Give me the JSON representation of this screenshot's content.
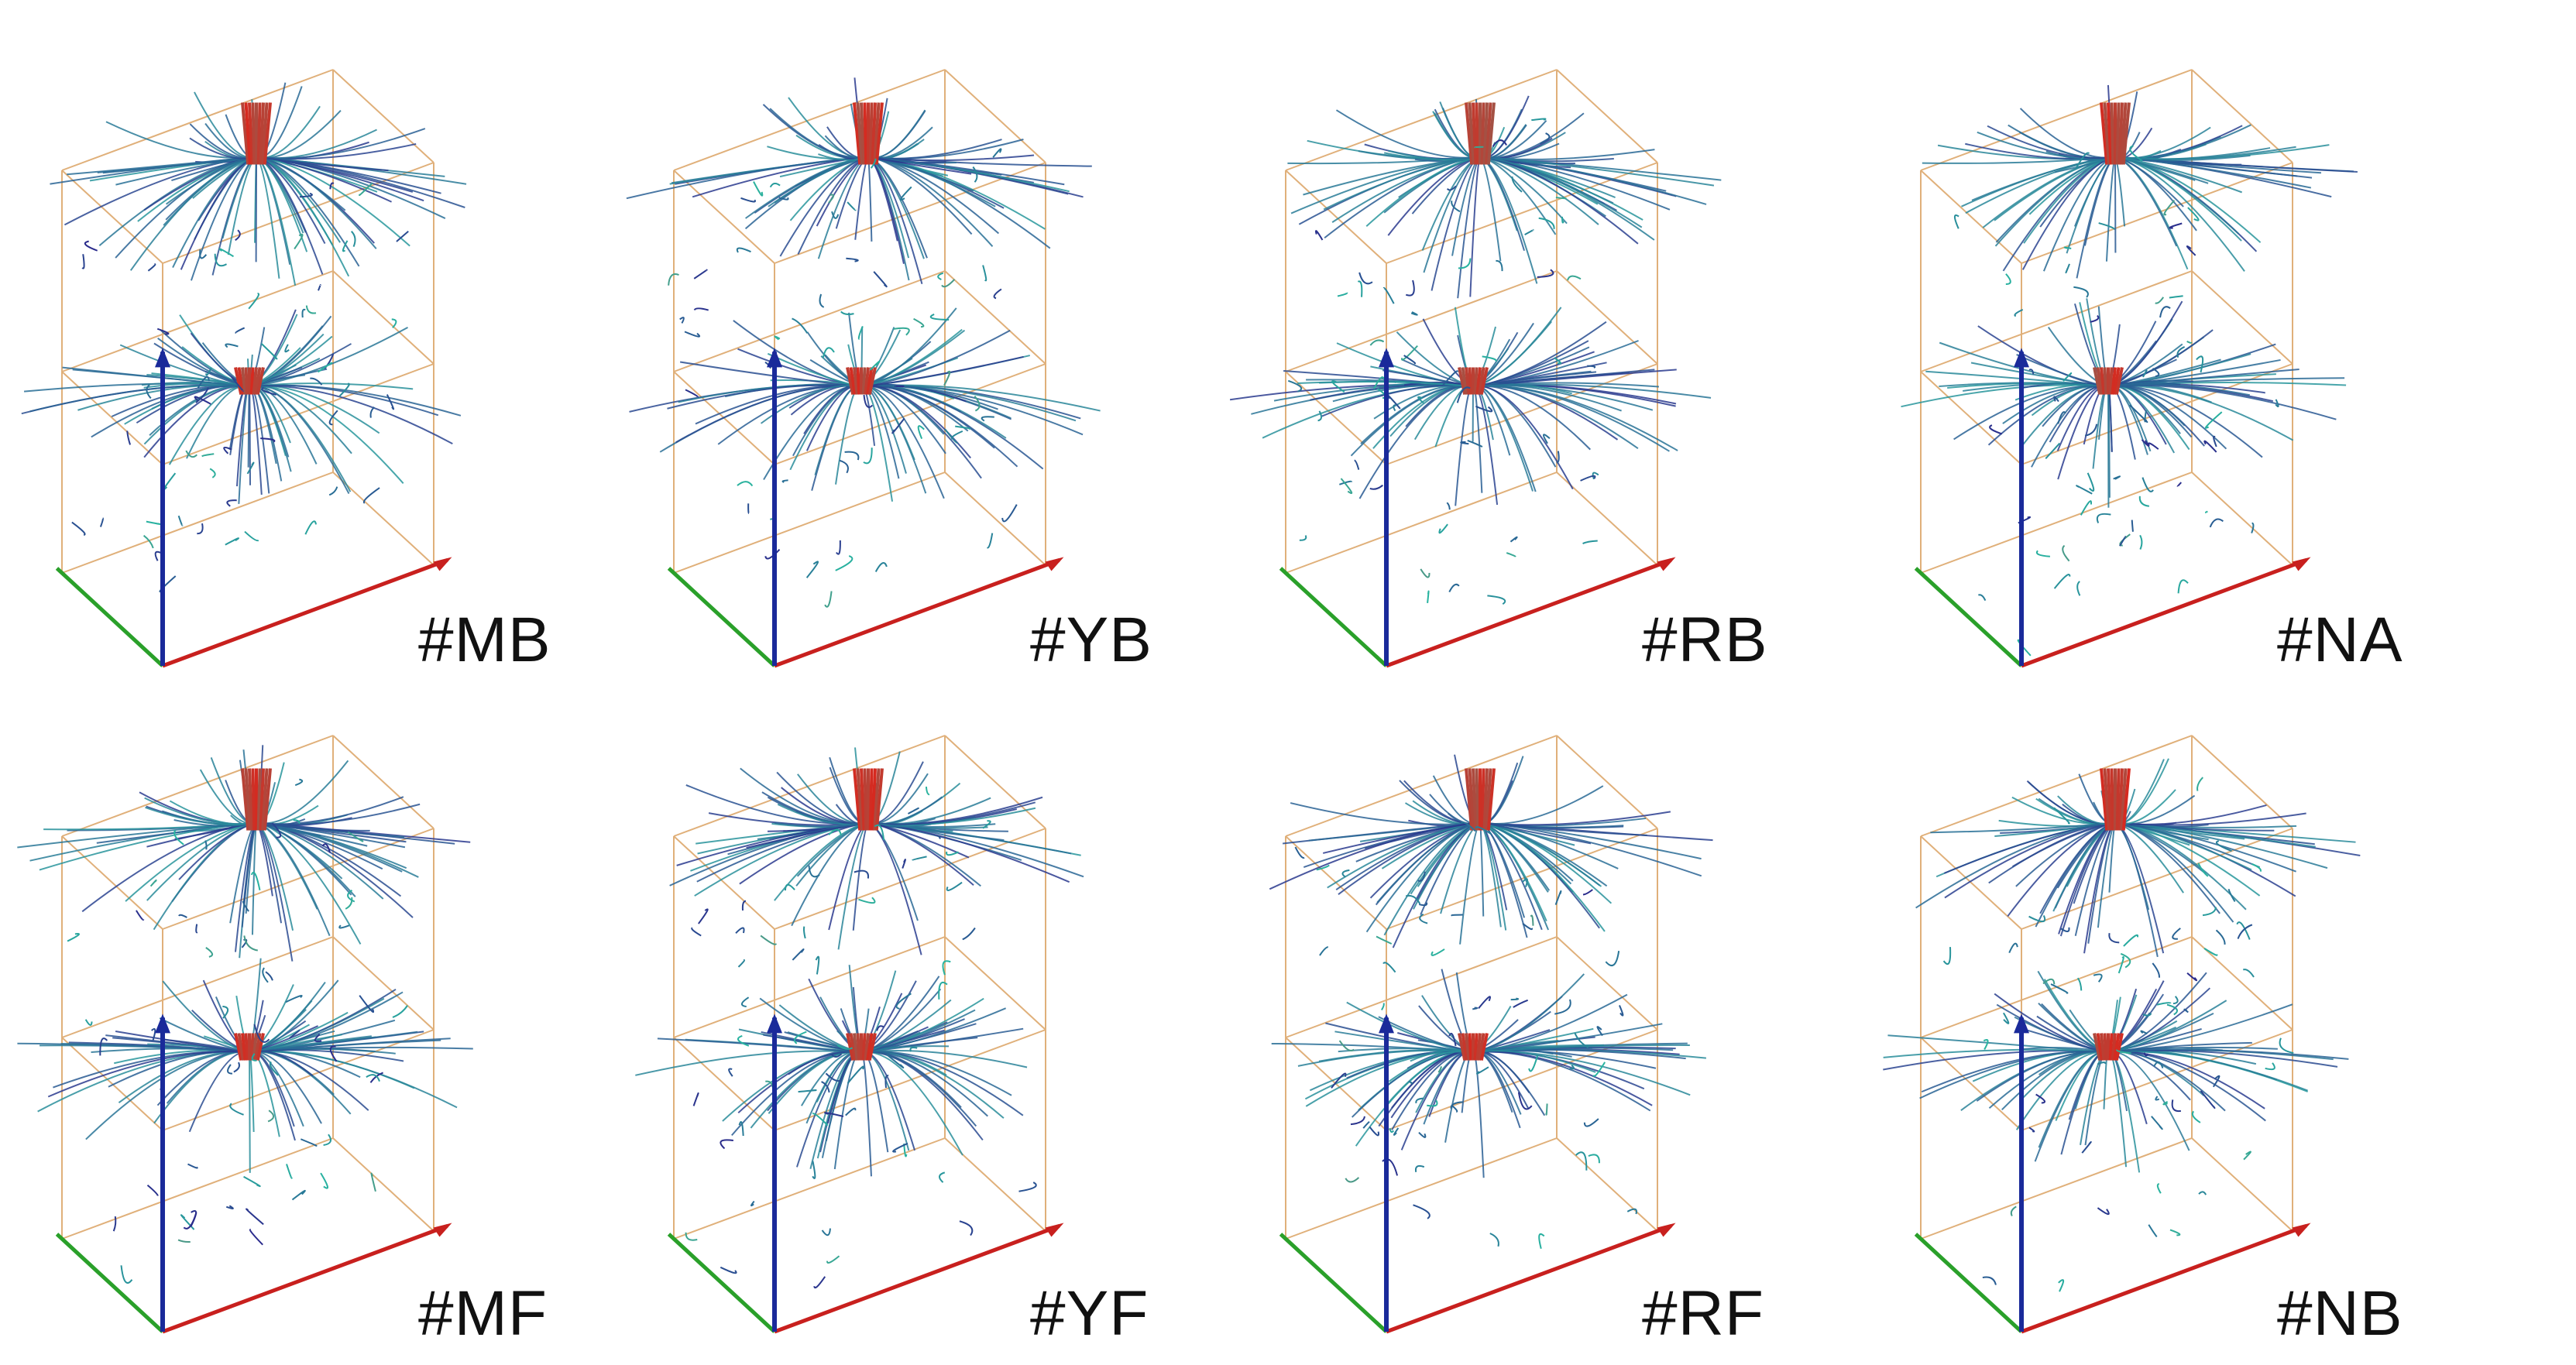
{
  "figure": {
    "panels": [
      {
        "label": "#MB"
      },
      {
        "label": "#YB"
      },
      {
        "label": "#RB"
      },
      {
        "label": "#NA"
      },
      {
        "label": "#MF"
      },
      {
        "label": "#YF"
      },
      {
        "label": "#RF"
      },
      {
        "label": "#NB"
      }
    ],
    "colors": {
      "box_edge": "#e0b07a",
      "box_edge_dark": "#5a3a8a",
      "axis_x": "#c8201e",
      "axis_y": "#2aa02a",
      "axis_z": "#1a2a9a",
      "streamline_low": "#2a2a8c",
      "streamline_mid": "#28b4a0",
      "streamline_high": "#d8281e"
    }
  }
}
